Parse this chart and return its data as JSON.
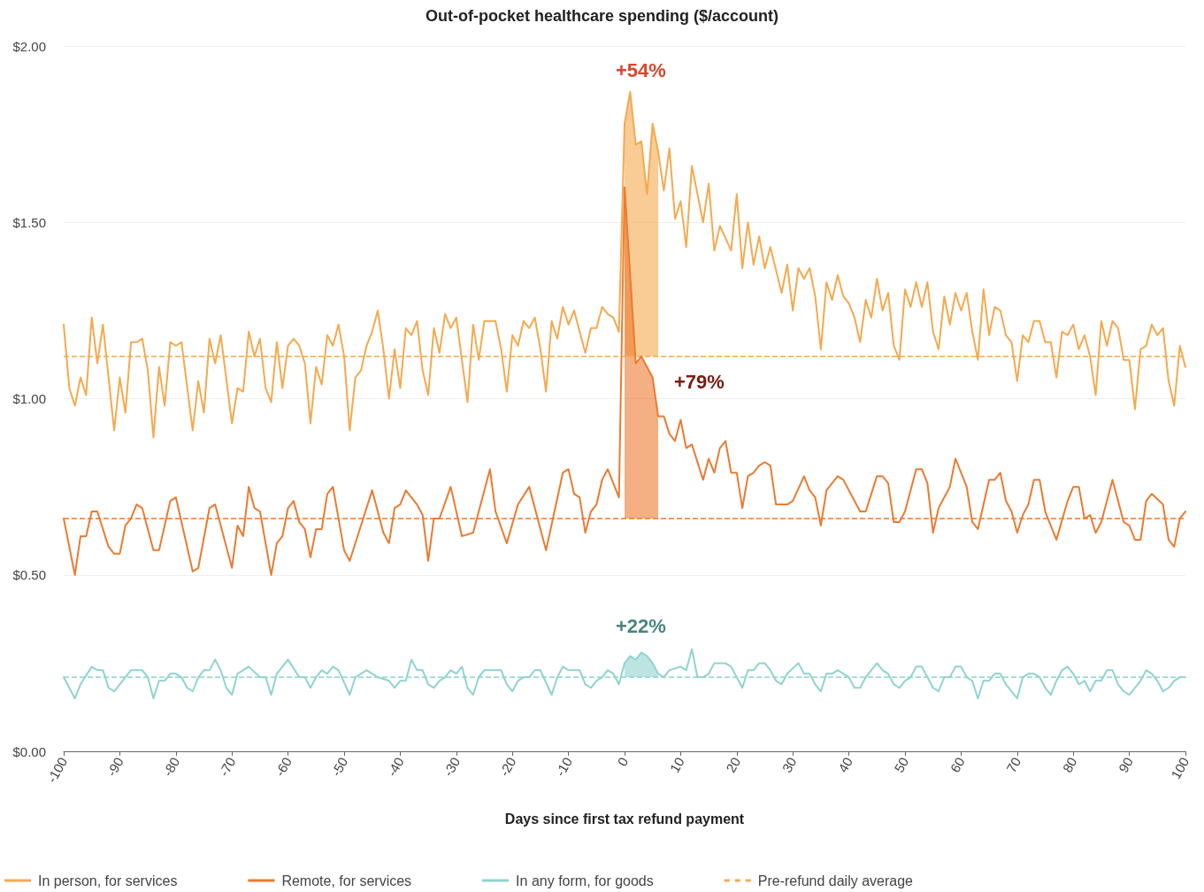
{
  "chart_data": {
    "type": "line",
    "title": "Out-of-pocket healthcare spending ($/account)",
    "xlabel": "Days since first tax refund payment",
    "xlim": [
      -100,
      100
    ],
    "xticks": [
      -100,
      -90,
      -80,
      -70,
      -60,
      -50,
      -40,
      -30,
      -20,
      -10,
      0,
      10,
      20,
      30,
      40,
      50,
      60,
      70,
      80,
      90,
      100
    ],
    "ylim": [
      0,
      2
    ],
    "yticks": [
      {
        "value": 0,
        "label": "$0.00"
      },
      {
        "value": 0.5,
        "label": "$0.50"
      },
      {
        "value": 1,
        "label": "$1.00"
      },
      {
        "value": 1.5,
        "label": "$1.50"
      },
      {
        "value": 2,
        "label": "$2.00"
      }
    ],
    "grid": "y",
    "legend": "bottom left",
    "marker": "none",
    "line_style": "solid",
    "series": [
      {
        "name": "In person, for services",
        "color": "#f5a94e",
        "lower": [
          null,
          null,
          null,
          null,
          null,
          null,
          null,
          null,
          null,
          null,
          null,
          null,
          null,
          null,
          null,
          null,
          null,
          null,
          null,
          null,
          null,
          null,
          null,
          null,
          null,
          null,
          null,
          null,
          null,
          null,
          null,
          null,
          null,
          null,
          null,
          null,
          null,
          null,
          null,
          null,
          null,
          null,
          null,
          null,
          null,
          null,
          null,
          null,
          null,
          null,
          null,
          null,
          null,
          null,
          null,
          null,
          null,
          null,
          null,
          null,
          null,
          null,
          null,
          null,
          null,
          null,
          null,
          null,
          null,
          null,
          null,
          null,
          null,
          null,
          null,
          null,
          null,
          null,
          null,
          null,
          null,
          null,
          null,
          null,
          null,
          null,
          null,
          null,
          null,
          null,
          null,
          null,
          null,
          null,
          null,
          null,
          1.12,
          1.12,
          1.12,
          1.12,
          1.12,
          1.12,
          1.12,
          null,
          null,
          null,
          null,
          null,
          null,
          null,
          null,
          null,
          null,
          null,
          null,
          null,
          null,
          null,
          null,
          null,
          null,
          null,
          null,
          null,
          null,
          null,
          null,
          null,
          null,
          null,
          null,
          null,
          null,
          null,
          null,
          null,
          null,
          null,
          null,
          null,
          null,
          null,
          null,
          null,
          null,
          null,
          null,
          null,
          null,
          null,
          null,
          null,
          null,
          null,
          null,
          null,
          null,
          null,
          null,
          null,
          null,
          null,
          null,
          null,
          null,
          null,
          null,
          null,
          null,
          null,
          null,
          null,
          null,
          null,
          null,
          null,
          null,
          null,
          null,
          null,
          null,
          null,
          null,
          null,
          null,
          null,
          null,
          null,
          null,
          null,
          null,
          null,
          null,
          null
        ],
        "upper": [
          null,
          null,
          null,
          null,
          null,
          null,
          null,
          null,
          null,
          null,
          null,
          null,
          null,
          null,
          null,
          null,
          null,
          null,
          null,
          null,
          null,
          null,
          null,
          null,
          null,
          null,
          null,
          null,
          null,
          null,
          null,
          null,
          null,
          null,
          null,
          null,
          null,
          null,
          null,
          null,
          null,
          null,
          null,
          null,
          null,
          null,
          null,
          null,
          null,
          null,
          null,
          null,
          null,
          null,
          null,
          null,
          null,
          null,
          null,
          null,
          null,
          null,
          null,
          null,
          null,
          null,
          null,
          null,
          null,
          null,
          null,
          null,
          null,
          null,
          null,
          null,
          null,
          null,
          null,
          null,
          null,
          null,
          null,
          null,
          null,
          null,
          null,
          null,
          null,
          null,
          null,
          null,
          null,
          null,
          null,
          null,
          1.78,
          1.87,
          1.72,
          1.73,
          1.58,
          1.78,
          1.7,
          null,
          null,
          null,
          null,
          null,
          null,
          null,
          null,
          null,
          null,
          null,
          null,
          null,
          null,
          null,
          null,
          null,
          null,
          null,
          null,
          null,
          null,
          null,
          null,
          null,
          null,
          null,
          null,
          null,
          null,
          null,
          null,
          null,
          null,
          null,
          null,
          null,
          null,
          null,
          null,
          null,
          null,
          null,
          null,
          null,
          null,
          null,
          null,
          null,
          null,
          null,
          null,
          null,
          null,
          null,
          null,
          null,
          null,
          null,
          null,
          null,
          null,
          null,
          null,
          null,
          null,
          null,
          null,
          null,
          null,
          null,
          null,
          null,
          null,
          null,
          null,
          null,
          null,
          null,
          null,
          null,
          null,
          null,
          null,
          null,
          null,
          null,
          null,
          null,
          null,
          null
        ],
        "x": [
          -100,
          -99,
          -98,
          -97,
          -96,
          -95,
          -94,
          -93,
          -91,
          -90,
          -89,
          -88,
          -87,
          -86,
          -85,
          -84,
          -83,
          -82,
          -81,
          -80,
          -79,
          -77,
          -76,
          -75,
          -74,
          -73,
          -72,
          -70,
          -69,
          -68,
          -67,
          -66,
          -65,
          -64,
          -63,
          -62,
          -61,
          -60,
          -59,
          -58,
          -57,
          -56,
          -55,
          -54,
          -53,
          -52,
          -51,
          -50,
          -49,
          -48,
          -47,
          -46,
          -45,
          -44,
          -43,
          -42,
          -41,
          -40,
          -39,
          -38,
          -37,
          -36,
          -35,
          -34,
          -33,
          -32,
          -31,
          -30,
          -29,
          -28,
          -27,
          -26,
          -25,
          -23,
          -22,
          -21,
          -20,
          -19,
          -18,
          -17,
          -16,
          -15,
          -14,
          -13,
          -12,
          -11,
          -10,
          -9,
          -8,
          -7,
          -6,
          -5,
          -4,
          -3,
          -2,
          -1,
          0,
          1,
          2,
          3,
          4,
          5,
          6,
          7,
          8,
          9,
          10,
          11,
          12,
          14,
          15,
          16,
          17,
          19,
          20,
          21,
          22,
          23,
          24,
          25,
          26,
          28,
          29,
          30,
          31,
          32,
          33,
          34,
          35,
          36,
          37,
          38,
          39,
          40,
          41,
          42,
          43,
          44,
          45,
          46,
          47,
          48,
          49,
          50,
          51,
          52,
          53,
          54,
          55,
          56,
          57,
          58,
          59,
          60,
          61,
          62,
          63,
          64,
          65,
          66,
          67,
          68,
          69,
          70,
          71,
          72,
          73,
          74,
          75,
          76,
          77,
          78,
          79,
          80,
          81,
          82,
          83,
          84,
          85,
          86,
          87,
          88,
          89,
          90,
          91,
          92,
          93,
          94,
          95,
          96,
          97,
          98,
          99,
          100
        ],
        "values": [
          1.21,
          1.03,
          0.98,
          1.06,
          1.01,
          1.23,
          1.1,
          1.21,
          0.91,
          1.06,
          0.96,
          1.16,
          1.16,
          1.17,
          1.08,
          0.89,
          1.09,
          0.98,
          1.16,
          1.15,
          1.16,
          0.91,
          1.05,
          0.96,
          1.17,
          1.1,
          1.18,
          0.93,
          1.03,
          1.02,
          1.19,
          1.12,
          1.17,
          1.03,
          0.99,
          1.16,
          1.03,
          1.15,
          1.17,
          1.15,
          1.1,
          0.93,
          1.09,
          1.04,
          1.18,
          1.15,
          1.21,
          1.12,
          0.91,
          1.06,
          1.08,
          1.15,
          1.19,
          1.25,
          1.14,
          1.0,
          1.14,
          1.03,
          1.2,
          1.18,
          1.22,
          1.08,
          1.01,
          1.2,
          1.13,
          1.24,
          1.2,
          1.23,
          1.11,
          0.99,
          1.21,
          1.11,
          1.22,
          1.22,
          1.14,
          1.02,
          1.18,
          1.15,
          1.22,
          1.2,
          1.23,
          1.14,
          1.02,
          1.22,
          1.17,
          1.26,
          1.21,
          1.25,
          1.19,
          1.13,
          1.2,
          1.2,
          1.26,
          1.24,
          1.23,
          1.19,
          1.78,
          1.87,
          1.72,
          1.73,
          1.58,
          1.78,
          1.7,
          1.59,
          1.71,
          1.51,
          1.56,
          1.43,
          1.66,
          1.5,
          1.61,
          1.42,
          1.49,
          1.42,
          1.58,
          1.37,
          1.5,
          1.38,
          1.46,
          1.37,
          1.43,
          1.3,
          1.38,
          1.25,
          1.37,
          1.34,
          1.37,
          1.29,
          1.14,
          1.33,
          1.28,
          1.35,
          1.29,
          1.27,
          1.23,
          1.16,
          1.28,
          1.23,
          1.34,
          1.25,
          1.3,
          1.15,
          1.11,
          1.31,
          1.26,
          1.33,
          1.26,
          1.33,
          1.19,
          1.14,
          1.29,
          1.21,
          1.3,
          1.25,
          1.3,
          1.19,
          1.11,
          1.31,
          1.18,
          1.26,
          1.25,
          1.18,
          1.16,
          1.05,
          1.18,
          1.16,
          1.22,
          1.22,
          1.16,
          1.16,
          1.06,
          1.19,
          1.18,
          1.21,
          1.14,
          1.18,
          1.12,
          1.01,
          1.22,
          1.15,
          1.22,
          1.2,
          1.11,
          1.11,
          0.97,
          1.14,
          1.15,
          1.21,
          1.18,
          1.2,
          1.05,
          0.98,
          1.15,
          1.09
        ]
      },
      {
        "name": "Remote, for services",
        "color": "#ec7a30",
        "lower": [
          null,
          null,
          null,
          null,
          null,
          null,
          null,
          null,
          null,
          null,
          null,
          null,
          null,
          null,
          null,
          null,
          null,
          null,
          null,
          null,
          null,
          null,
          null,
          null,
          null,
          null,
          null,
          null,
          null,
          null,
          null,
          null,
          null,
          null,
          null,
          null,
          null,
          null,
          null,
          null,
          null,
          null,
          null,
          null,
          null,
          null,
          null,
          null,
          null,
          null,
          null,
          null,
          null,
          null,
          null,
          null,
          null,
          null,
          null,
          null,
          null,
          null,
          null,
          null,
          null,
          null,
          null,
          null,
          null,
          null,
          null,
          0.66,
          0.66,
          0.66,
          0.66,
          0.66,
          0.66,
          null,
          null,
          null,
          null,
          null,
          null,
          null,
          null,
          null,
          null,
          null,
          null,
          null,
          null,
          null,
          null,
          null,
          null,
          null,
          null,
          null,
          null,
          null,
          null,
          null,
          null,
          null,
          null,
          null,
          null,
          null,
          null,
          null,
          null,
          null,
          null,
          null,
          null,
          null,
          null,
          null,
          null,
          null,
          null,
          null,
          null,
          null,
          null,
          null,
          null,
          null,
          null,
          null,
          null,
          null,
          null,
          null,
          null,
          null,
          null,
          null,
          null,
          null,
          null,
          null,
          null,
          null,
          null,
          null,
          null,
          null,
          null,
          null,
          null,
          null,
          null,
          null,
          null,
          null
        ],
        "upper": [
          null,
          null,
          null,
          null,
          null,
          null,
          null,
          null,
          null,
          null,
          null,
          null,
          null,
          null,
          null,
          null,
          null,
          null,
          null,
          null,
          null,
          null,
          null,
          null,
          null,
          null,
          null,
          null,
          null,
          null,
          null,
          null,
          null,
          null,
          null,
          null,
          null,
          null,
          null,
          null,
          null,
          null,
          null,
          null,
          null,
          null,
          null,
          null,
          null,
          null,
          null,
          null,
          null,
          null,
          null,
          null,
          null,
          null,
          null,
          null,
          null,
          null,
          null,
          null,
          null,
          null,
          null,
          null,
          null,
          null,
          null,
          1.6,
          1.1,
          1.12,
          1.09,
          1.06,
          0.95,
          null,
          null,
          null,
          null,
          null,
          null,
          null,
          null,
          null,
          null,
          null,
          null,
          null,
          null,
          null,
          null,
          null,
          null,
          null,
          null,
          null,
          null,
          null,
          null,
          null,
          null,
          null,
          null,
          null,
          null,
          null,
          null,
          null,
          null,
          null,
          null,
          null,
          null,
          null,
          null,
          null,
          null,
          null,
          null,
          null,
          null,
          null,
          null,
          null,
          null,
          null,
          null,
          null,
          null,
          null,
          null,
          null,
          null,
          null,
          null,
          null,
          null,
          null,
          null,
          null,
          null,
          null,
          null,
          null,
          null,
          null,
          null,
          null,
          null,
          null,
          null,
          null,
          null,
          null
        ],
        "x": [
          -100,
          -98,
          -97,
          -96,
          -95,
          -94,
          -92,
          -91,
          -90,
          -89,
          -88,
          -87,
          -86,
          -84,
          -83,
          -81,
          -80,
          -77,
          -76,
          -74,
          -73,
          -70,
          -69,
          -68,
          -67,
          -66,
          -65,
          -63,
          -62,
          -61,
          -60,
          -59,
          -58,
          -57,
          -56,
          -55,
          -54,
          -53,
          -52,
          -50,
          -49,
          -45,
          -43,
          -42,
          -41,
          -40,
          -39,
          -37,
          -36,
          -35,
          -34,
          -33,
          -31,
          -29,
          -27,
          -24,
          -23,
          -21,
          -19,
          -17,
          -14,
          -11,
          -10,
          -9,
          -8,
          -7,
          -6,
          -5,
          -4,
          -3,
          -1,
          0,
          2,
          3,
          4,
          5,
          6,
          7,
          8,
          9,
          10,
          11,
          12,
          14,
          15,
          16,
          17,
          18,
          19,
          20,
          21,
          22,
          23,
          24,
          25,
          26,
          27,
          29,
          30,
          32,
          33,
          34,
          35,
          36,
          38,
          39,
          42,
          43,
          44,
          45,
          46,
          47,
          48,
          49,
          50,
          52,
          53,
          54,
          55,
          56,
          58,
          59,
          61,
          62,
          63,
          65,
          66,
          67,
          68,
          69,
          70,
          71,
          72,
          73,
          74,
          75,
          77,
          79,
          80,
          81,
          82,
          83,
          84,
          85,
          87,
          89,
          90,
          91,
          92,
          93,
          94,
          96,
          97,
          98,
          99,
          100
        ],
        "values": [
          0.66,
          0.5,
          0.61,
          0.61,
          0.68,
          0.68,
          0.58,
          0.56,
          0.56,
          0.64,
          0.66,
          0.7,
          0.69,
          0.57,
          0.57,
          0.71,
          0.72,
          0.51,
          0.52,
          0.69,
          0.7,
          0.52,
          0.64,
          0.61,
          0.75,
          0.69,
          0.68,
          0.5,
          0.59,
          0.61,
          0.69,
          0.71,
          0.65,
          0.63,
          0.55,
          0.63,
          0.63,
          0.73,
          0.75,
          0.57,
          0.54,
          0.74,
          0.62,
          0.59,
          0.69,
          0.7,
          0.74,
          0.7,
          0.67,
          0.54,
          0.66,
          0.66,
          0.75,
          0.61,
          0.62,
          0.8,
          0.68,
          0.59,
          0.7,
          0.75,
          0.57,
          0.79,
          0.8,
          0.73,
          0.72,
          0.62,
          0.68,
          0.7,
          0.77,
          0.8,
          0.72,
          1.6,
          1.1,
          1.12,
          1.09,
          1.06,
          0.95,
          0.95,
          0.9,
          0.88,
          0.94,
          0.86,
          0.87,
          0.77,
          0.83,
          0.79,
          0.86,
          0.88,
          0.79,
          0.79,
          0.69,
          0.78,
          0.79,
          0.81,
          0.82,
          0.81,
          0.7,
          0.7,
          0.71,
          0.78,
          0.74,
          0.72,
          0.64,
          0.74,
          0.78,
          0.77,
          0.68,
          0.68,
          0.73,
          0.78,
          0.78,
          0.76,
          0.65,
          0.65,
          0.68,
          0.8,
          0.8,
          0.76,
          0.62,
          0.69,
          0.75,
          0.83,
          0.75,
          0.65,
          0.63,
          0.77,
          0.77,
          0.79,
          0.71,
          0.68,
          0.62,
          0.67,
          0.7,
          0.77,
          0.77,
          0.68,
          0.6,
          0.71,
          0.75,
          0.75,
          0.66,
          0.67,
          0.62,
          0.65,
          0.77,
          0.65,
          0.64,
          0.6,
          0.6,
          0.71,
          0.73,
          0.7,
          0.6,
          0.58,
          0.66,
          0.68
        ]
      },
      {
        "name": "In any form, for goods",
        "color": "#8fd3cf",
        "lower": [
          null,
          null,
          null,
          null,
          null,
          null,
          null,
          null,
          null,
          null,
          null,
          null,
          null,
          null,
          null,
          null,
          null,
          null,
          null,
          null,
          null,
          null,
          null,
          null,
          null,
          null,
          null,
          null,
          null,
          null,
          null,
          null,
          null,
          null,
          null,
          null,
          null,
          null,
          null,
          null,
          null,
          null,
          null,
          null,
          null,
          null,
          null,
          null,
          null,
          null,
          null,
          null,
          null,
          null,
          null,
          null,
          null,
          null,
          null,
          null,
          null,
          null,
          null,
          null,
          null,
          null,
          null,
          null,
          null,
          null,
          null,
          null,
          null,
          null,
          null,
          null,
          null,
          null,
          null,
          null,
          null,
          null,
          null,
          null,
          null,
          0.21,
          0.21,
          0.21,
          0.21,
          0.21,
          0.21,
          0.21,
          null,
          null,
          null,
          null,
          null,
          null,
          null,
          null,
          null,
          null,
          null,
          null,
          null,
          null,
          null,
          null,
          null,
          null,
          null,
          null,
          null,
          null,
          null,
          null,
          null,
          null,
          null,
          null,
          null,
          null,
          null,
          null,
          null,
          null,
          null,
          null,
          null,
          null,
          null,
          null,
          null,
          null,
          null,
          null,
          null,
          null,
          null,
          null,
          null,
          null,
          null,
          null,
          null,
          null,
          null,
          null,
          null,
          null,
          null,
          null,
          null,
          null,
          null,
          null,
          null,
          null,
          null,
          null,
          null,
          null,
          null,
          null,
          null,
          null,
          null,
          null,
          null,
          null,
          null,
          null,
          null,
          null,
          null,
          null,
          null,
          null,
          null,
          null,
          null
        ],
        "upper": [
          null,
          null,
          null,
          null,
          null,
          null,
          null,
          null,
          null,
          null,
          null,
          null,
          null,
          null,
          null,
          null,
          null,
          null,
          null,
          null,
          null,
          null,
          null,
          null,
          null,
          null,
          null,
          null,
          null,
          null,
          null,
          null,
          null,
          null,
          null,
          null,
          null,
          null,
          null,
          null,
          null,
          null,
          null,
          null,
          null,
          null,
          null,
          null,
          null,
          null,
          null,
          null,
          null,
          null,
          null,
          null,
          null,
          null,
          null,
          null,
          null,
          null,
          null,
          null,
          null,
          null,
          null,
          null,
          null,
          null,
          null,
          null,
          null,
          null,
          null,
          null,
          null,
          null,
          null,
          null,
          null,
          null,
          null,
          null,
          null,
          0.25,
          0.27,
          0.26,
          0.28,
          0.27,
          0.25,
          0.22,
          null,
          null,
          null,
          null,
          null,
          null,
          null,
          null,
          null,
          null,
          null,
          null,
          null,
          null,
          null,
          null,
          null,
          null,
          null,
          null,
          null,
          null,
          null,
          null,
          null,
          null,
          null,
          null,
          null,
          null,
          null,
          null,
          null,
          null,
          null,
          null,
          null,
          null,
          null,
          null,
          null,
          null,
          null,
          null,
          null,
          null,
          null,
          null,
          null,
          null,
          null,
          null,
          null,
          null,
          null,
          null,
          null,
          null,
          null,
          null,
          null,
          null,
          null,
          null,
          null,
          null,
          null,
          null,
          null,
          null,
          null,
          null,
          null,
          null,
          null,
          null,
          null,
          null,
          null,
          null,
          null,
          null,
          null,
          null,
          null,
          null,
          null,
          null,
          null
        ],
        "x": [
          -100,
          -98,
          -97,
          -95,
          -94,
          -93,
          -92,
          -91,
          -88,
          -86,
          -85,
          -84,
          -83,
          -82,
          -81,
          -80,
          -79,
          -78,
          -77,
          -76,
          -75,
          -74,
          -73,
          -72,
          -71,
          -70,
          -69,
          -68,
          -67,
          -65,
          -64,
          -63,
          -62,
          -60,
          -58,
          -57,
          -56,
          -55,
          -54,
          -53,
          -52,
          -51,
          -49,
          -48,
          -46,
          -44,
          -42,
          -41,
          -40,
          -39,
          -38,
          -37,
          -36,
          -35,
          -34,
          -33,
          -32,
          -31,
          -30,
          -29,
          -28,
          -27,
          -26,
          -25,
          -22,
          -21,
          -20,
          -19,
          -18,
          -17,
          -16,
          -15,
          -13,
          -12,
          -11,
          -10,
          -9,
          -8,
          -7,
          -6,
          -5,
          -4,
          -3,
          -2,
          -1,
          0,
          1,
          2,
          3,
          4,
          5,
          6,
          7,
          8,
          10,
          11,
          12,
          13,
          14,
          15,
          16,
          18,
          19,
          21,
          22,
          23,
          24,
          25,
          26,
          27,
          28,
          29,
          31,
          32,
          33,
          34,
          35,
          36,
          37,
          38,
          39,
          40,
          41,
          42,
          43,
          45,
          46,
          47,
          48,
          49,
          50,
          51,
          52,
          53,
          54,
          55,
          56,
          57,
          58,
          59,
          60,
          61,
          62,
          63,
          64,
          65,
          66,
          67,
          68,
          69,
          70,
          71,
          72,
          73,
          74,
          75,
          76,
          77,
          78,
          79,
          80,
          81,
          82,
          83,
          84,
          85,
          86,
          87,
          88,
          89,
          90,
          91,
          92,
          93,
          94,
          95,
          96,
          97,
          98,
          99,
          100
        ],
        "values": [
          0.21,
          0.15,
          0.19,
          0.24,
          0.23,
          0.23,
          0.18,
          0.17,
          0.23,
          0.23,
          0.21,
          0.15,
          0.2,
          0.2,
          0.22,
          0.22,
          0.21,
          0.18,
          0.17,
          0.21,
          0.23,
          0.23,
          0.26,
          0.23,
          0.18,
          0.16,
          0.22,
          0.23,
          0.24,
          0.21,
          0.21,
          0.16,
          0.22,
          0.26,
          0.21,
          0.21,
          0.18,
          0.21,
          0.23,
          0.22,
          0.24,
          0.23,
          0.16,
          0.21,
          0.23,
          0.21,
          0.2,
          0.18,
          0.2,
          0.2,
          0.26,
          0.23,
          0.23,
          0.19,
          0.18,
          0.2,
          0.21,
          0.23,
          0.22,
          0.24,
          0.18,
          0.16,
          0.21,
          0.23,
          0.23,
          0.19,
          0.17,
          0.2,
          0.21,
          0.21,
          0.23,
          0.23,
          0.16,
          0.21,
          0.24,
          0.23,
          0.23,
          0.23,
          0.19,
          0.18,
          0.2,
          0.21,
          0.23,
          0.22,
          0.19,
          0.25,
          0.27,
          0.26,
          0.28,
          0.27,
          0.25,
          0.22,
          0.21,
          0.23,
          0.24,
          0.23,
          0.29,
          0.21,
          0.21,
          0.22,
          0.25,
          0.25,
          0.24,
          0.18,
          0.23,
          0.23,
          0.25,
          0.25,
          0.23,
          0.2,
          0.19,
          0.22,
          0.25,
          0.22,
          0.22,
          0.19,
          0.17,
          0.22,
          0.22,
          0.23,
          0.22,
          0.21,
          0.18,
          0.18,
          0.21,
          0.25,
          0.23,
          0.22,
          0.19,
          0.18,
          0.2,
          0.21,
          0.24,
          0.24,
          0.21,
          0.18,
          0.17,
          0.21,
          0.21,
          0.24,
          0.24,
          0.21,
          0.2,
          0.15,
          0.2,
          0.2,
          0.22,
          0.22,
          0.19,
          0.17,
          0.15,
          0.21,
          0.22,
          0.22,
          0.21,
          0.18,
          0.16,
          0.2,
          0.23,
          0.24,
          0.22,
          0.19,
          0.2,
          0.17,
          0.2,
          0.2,
          0.23,
          0.23,
          0.19,
          0.17,
          0.16,
          0.18,
          0.2,
          0.23,
          0.22,
          0.2,
          0.17,
          0.18,
          0.2,
          0.21,
          0.21
        ]
      }
    ],
    "ref_lines": [
      {
        "axis": "y",
        "value": 1.12,
        "color": "#f5a94e",
        "line_style": "dashed",
        "label": "Pre-refund daily average"
      },
      {
        "axis": "y",
        "value": 0.66,
        "color": "#ec7a30",
        "line_style": "dashed"
      },
      {
        "axis": "y",
        "value": 0.21,
        "color": "#8fd3cf",
        "line_style": "dashed"
      }
    ],
    "annotations": [
      "+54%",
      "+79%",
      "+22%"
    ]
  }
}
